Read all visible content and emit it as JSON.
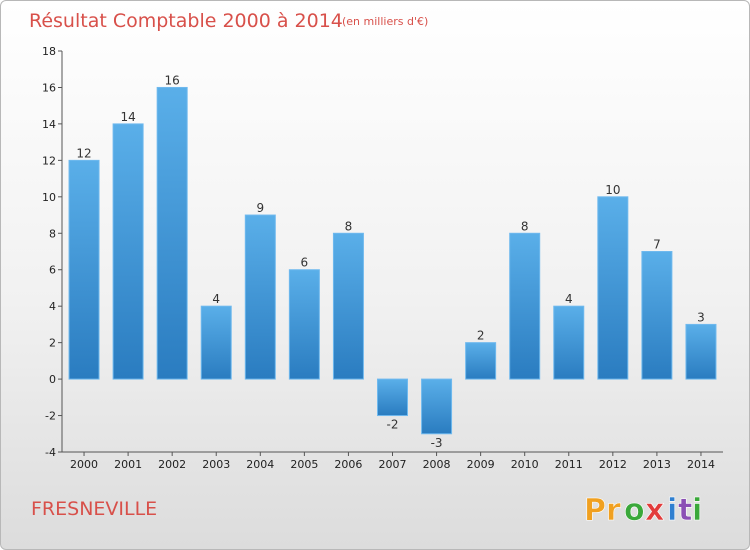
{
  "chart_data": {
    "type": "bar",
    "title": "Résultat Comptable 2000 à 2014",
    "subtitle": "(en milliers d'€)",
    "categories": [
      "2000",
      "2001",
      "2002",
      "2003",
      "2004",
      "2005",
      "2006",
      "2007",
      "2008",
      "2009",
      "2010",
      "2011",
      "2012",
      "2013",
      "2014"
    ],
    "values": [
      12,
      14,
      16,
      4,
      9,
      6,
      8,
      -2,
      -3,
      2,
      8,
      4,
      10,
      7,
      3
    ],
    "value_labels": [
      "12",
      "14",
      "16",
      "4",
      "9",
      "6",
      "8",
      "-2",
      "-3",
      "2",
      "8",
      "4",
      "10",
      "7",
      "3"
    ],
    "ylim": [
      -4,
      18
    ],
    "yticks": [
      -4,
      -2,
      0,
      2,
      4,
      6,
      8,
      10,
      12,
      14,
      16,
      18
    ],
    "ytick_labels": [
      "-4",
      "-2",
      "0",
      "2",
      "4",
      "6",
      "8",
      "10",
      "12",
      "14",
      "16",
      "18"
    ],
    "xlabel": "",
    "ylabel": "",
    "grid": false,
    "legend": "none",
    "bar_color": "#3f97d9"
  },
  "footer": {
    "town": "FRESNEVILLE",
    "logo_letters": [
      "P",
      "r",
      "o",
      "x",
      "i",
      "t",
      "i"
    ],
    "logo_colors": [
      "#f0a020",
      "#f0a020",
      "#3aa83a",
      "#e23b3b",
      "#2f7fd0",
      "#8b4fb5",
      "#3aa83a"
    ]
  }
}
